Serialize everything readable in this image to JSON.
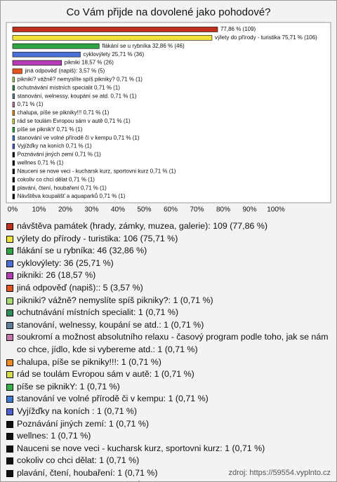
{
  "chart_data": {
    "type": "hbar",
    "title": "Co Vám přijde na dovolené jako pohodové?",
    "categories": [
      "návštěva památek (hrady, zámky, muzea, galerie): 109 (77,86 %)",
      "výlety do přírody - turistika: 106 (75,71 %)",
      "flákání se u rybníka: 46 (32,86 %)",
      "cyklovýlety: 36 (25,71 %)",
      "pikniki: 26 (18,57 %)",
      "jiná odpověď (napiš):: 5 (3,57 %)",
      "pikniki? vážně? nemyslíte spíš pikniky?: 1 (0,71 %)",
      "ochutnávání místních specialit: 1 (0,71 %)",
      "stanování, welnessy, koupání se atd.: 1 (0,71 %)",
      "soukromí a možnost absolutního relaxu - časový program podle toho, jak se nám co chce, jídlo, kde si vybereme atd.: 1 (0,71 %)",
      "chalupa, píše se pikniky!!!: 1 (0,71 %)",
      "rád se toulám Evropou sám v autě: 1 (0,71 %)",
      "píše se piknikY: 1 (0,71 %)",
      "stanování ve volné přírodě či v kempu: 1 (0,71 %)",
      "Vyjížďky na koních : 1 (0,71 %)",
      "Poznávání jiných zemí: 1 (0,71 %)",
      "wellnes: 1 (0,71 %)",
      "Nauceni se nove veci - kucharsk kurz, sportovni kurz: 1 (0,71 %)",
      "cokoliv  co  chci dělat: 1 (0,71 %)",
      "plavání, čtení, houbaření: 1 (0,71 %)",
      "Návštěva koupališť a aquaparků: 1 (0,71 %)"
    ],
    "values": [
      77.86,
      75.71,
      32.86,
      25.71,
      18.57,
      3.57,
      0.71,
      0.71,
      0.71,
      0.71,
      0.71,
      0.71,
      0.71,
      0.71,
      0.71,
      0.71,
      0.71,
      0.71,
      0.71,
      0.71,
      0.71
    ],
    "value_labels": [
      "77,86 % (109)",
      "výlety do přírody - turistika 75,71 % (106)",
      "flákání se u rybníka 32,86 % (46)",
      "cyklovýlety 25,71 % (36)",
      "pikniki 18,57 % (26)",
      "jiná odpověď (napiš): 3,57 % (5)",
      "pikniki? vážně? nemyslíte spíš pikniky? 0,71 % (1)",
      "ochutnávání místních specialit 0,71 % (1)",
      "stanování, welnessy, koupání se atd. 0,71 % (1)",
      "0,71 % (1)",
      "chalupa, píše se pikniky!!! 0,71 % (1)",
      "rád se toulám Evropou sám v autě 0,71 % (1)",
      "píše se piknikY 0,71 % (1)",
      "stanování ve volné přírodě či v kempu 0,71 % (1)",
      "Vyjížďky na koních  0,71 % (1)",
      "Poznávání jiných zemí 0,71 % (1)",
      "wellnes 0,71 % (1)",
      "Nauceni se nove veci - kucharsk kurz, sportovni kurz 0,71 % (1)",
      "cokoliv  co  chci dělat 0,71 % (1)",
      "plavání, čtení, houbaření 0,71 % (1)",
      "Návštěva koupališť a aquaparků 0,71 % (1)"
    ],
    "colors": [
      "#c0301c",
      "#f2e23a",
      "#2fa544",
      "#4a70d8",
      "#b43cb4",
      "#e4561e",
      "#a6dc6e",
      "#2e8b5a",
      "#5d7f9a",
      "#c078ac",
      "#ee8a22",
      "#d6df48",
      "#38b04a",
      "#3c7ad6",
      "#4c5fce",
      "#111111",
      "#111111",
      "#111111",
      "#111111",
      "#111111",
      "#111111"
    ],
    "xlim": [
      0,
      100
    ],
    "xticks": [
      {
        "value": 0,
        "label": "0%"
      },
      {
        "value": 10,
        "label": "10%"
      },
      {
        "value": 20,
        "label": "20%"
      },
      {
        "value": 30,
        "label": "30%"
      },
      {
        "value": 40,
        "label": "40%"
      },
      {
        "value": 50,
        "label": "50%"
      },
      {
        "value": 60,
        "label": "60%"
      },
      {
        "value": 70,
        "label": "70%"
      },
      {
        "value": 80,
        "label": "80%"
      },
      {
        "value": 90,
        "label": "90%"
      },
      {
        "value": 100,
        "label": "100%"
      }
    ],
    "footer": "zdroj: https://59554.vyplnto.cz"
  }
}
